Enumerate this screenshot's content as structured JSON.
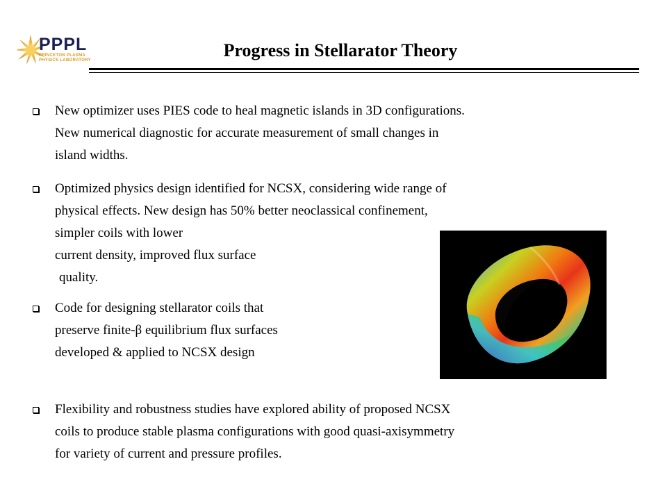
{
  "logo": {
    "name": "PPPL",
    "subtitle_lines": [
      "PRINCETON PLASMA",
      "PHYSICS LABORATORY"
    ],
    "icon": "sunburst-icon"
  },
  "title": "Progress in  Stellarator Theory",
  "bullets": [
    {
      "lines": [
        "New optimizer uses PIES code to heal magnetic islands in 3D configurations.",
        "New numerical diagnostic for accurate measurement of small changes in",
        "island widths."
      ]
    },
    {
      "lines": [
        "Optimized physics design identified for NCSX, considering wide range of",
        "physical effects.  New design has 50% better neoclassical confinement,",
        "simpler coils with lower",
        "current density, improved flux surface",
        "quality."
      ]
    },
    {
      "lines": [
        "Code for designing stellarator coils that",
        "preserve finite-β equilibrium flux surfaces",
        "developed & applied to NCSX design"
      ]
    },
    {
      "lines": [
        "Flexibility and robustness studies have explored ability of proposed NCSX",
        "coils to produce stable plasma configurations with good quasi-axisymmetry",
        "for variety of current and pressure profiles."
      ]
    }
  ],
  "colors": {
    "accent_navy": "#1b1f55",
    "accent_orange": "#d89a20",
    "figure_background": "#000000"
  }
}
